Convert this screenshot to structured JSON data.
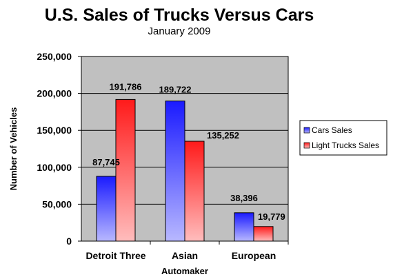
{
  "chart_data": {
    "type": "bar",
    "title": "U.S. Sales of Trucks Versus Cars",
    "subtitle": "January 2009",
    "xlabel": "Automaker",
    "ylabel": "Number of Vehicles",
    "categories": [
      "Detroit Three",
      "Asian",
      "European"
    ],
    "series": [
      {
        "name": "Cars Sales",
        "values": [
          87745,
          189722,
          38396
        ],
        "labels": [
          "87,745",
          "189,722",
          "38,396"
        ],
        "color": "#3333ff"
      },
      {
        "name": "Light Trucks Sales",
        "values": [
          191786,
          135252,
          19779
        ],
        "labels": [
          "191,786",
          "135,252",
          "19,779"
        ],
        "color": "#ff3333"
      }
    ],
    "ylim": [
      0,
      250000
    ],
    "yticks": [
      0,
      50000,
      100000,
      150000,
      200000,
      250000
    ],
    "ytick_labels": [
      "0",
      "50,000",
      "100,000",
      "150,000",
      "200,000",
      "250,000"
    ],
    "grid": true,
    "plot_background": "#c0c0c0",
    "legend_position": "right"
  }
}
